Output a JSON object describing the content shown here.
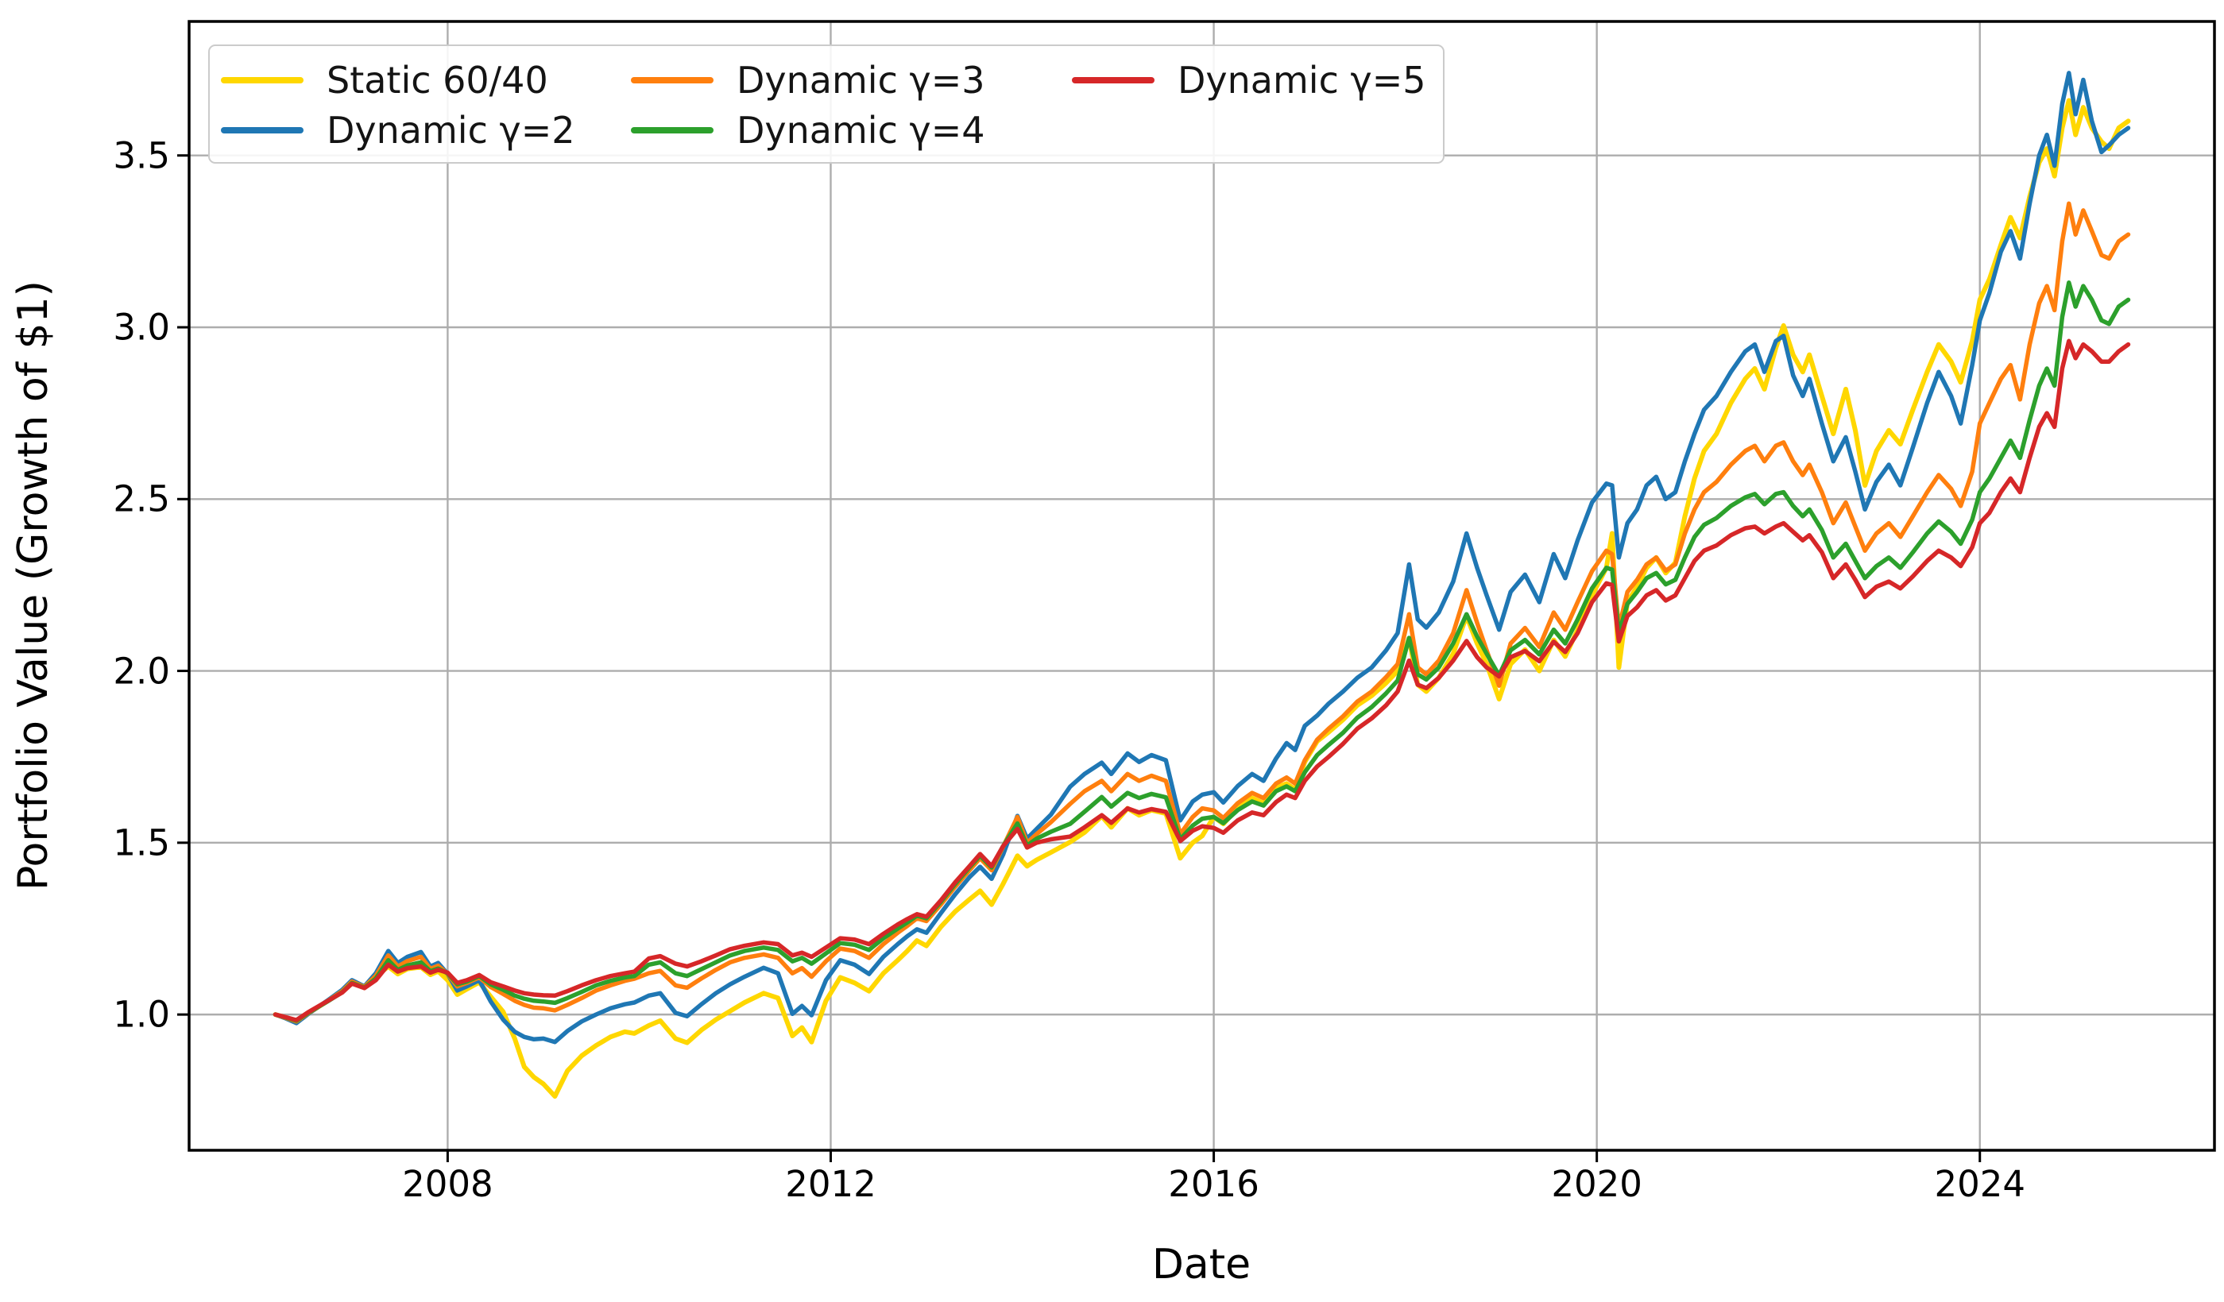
{
  "figure": {
    "background": "#ffffff"
  },
  "axes": {
    "xlabel": "Date",
    "ylabel": "Portfolio Value (Growth of $1)",
    "x_tick_labels": [
      "2008",
      "2012",
      "2016",
      "2020",
      "2024"
    ],
    "y_tick_labels": [
      "1.0",
      "1.5",
      "2.0",
      "2.5",
      "3.0",
      "3.5"
    ],
    "grid_color": "#adadad",
    "spine_color": "#000000",
    "tick_color": "#000000"
  },
  "legend": {
    "border_color": "#cbcbcb",
    "background": "#ffffff",
    "columns": [
      {
        "x": 14,
        "entry_indexes": [
          0,
          1
        ]
      },
      {
        "x": 530,
        "entry_indexes": [
          2,
          3
        ]
      },
      {
        "x": 1085,
        "entry_indexes": [
          4
        ]
      }
    ]
  },
  "chart_data": {
    "type": "line",
    "title": "",
    "xlabel": "Date",
    "ylabel": "Portfolio Value (Growth of $1)",
    "legend_position": "upper-left",
    "grid": true,
    "xlim": [
      2005.3,
      2026.45
    ],
    "ylim": [
      0.605,
      3.89
    ],
    "x_ticks": [
      2008,
      2012,
      2016,
      2020,
      2024
    ],
    "y_ticks": [
      1.0,
      1.5,
      2.0,
      2.5,
      3.0,
      3.5
    ],
    "x": [
      2006.2,
      2006.3,
      2006.42,
      2006.55,
      2006.75,
      2006.9,
      2007.0,
      2007.13,
      2007.25,
      2007.38,
      2007.48,
      2007.58,
      2007.72,
      2007.82,
      2007.9,
      2008.0,
      2008.1,
      2008.2,
      2008.33,
      2008.45,
      2008.58,
      2008.7,
      2008.8,
      2008.9,
      2009.0,
      2009.12,
      2009.25,
      2009.4,
      2009.55,
      2009.7,
      2009.85,
      2009.95,
      2010.1,
      2010.22,
      2010.38,
      2010.5,
      2010.65,
      2010.8,
      2010.95,
      2011.1,
      2011.3,
      2011.45,
      2011.6,
      2011.7,
      2011.8,
      2011.95,
      2012.1,
      2012.25,
      2012.4,
      2012.55,
      2012.7,
      2012.8,
      2012.9,
      2013.0,
      2013.15,
      2013.3,
      2013.45,
      2013.56,
      2013.68,
      2013.8,
      2013.95,
      2014.05,
      2014.15,
      2014.3,
      2014.5,
      2014.65,
      2014.83,
      2014.93,
      2015.1,
      2015.22,
      2015.35,
      2015.5,
      2015.65,
      2015.78,
      2015.88,
      2016.0,
      2016.1,
      2016.25,
      2016.4,
      2016.52,
      2016.65,
      2016.76,
      2016.85,
      2016.95,
      2017.08,
      2017.2,
      2017.35,
      2017.5,
      2017.65,
      2017.8,
      2017.92,
      2018.04,
      2018.13,
      2018.22,
      2018.35,
      2018.5,
      2018.64,
      2018.75,
      2018.85,
      2018.98,
      2019.1,
      2019.25,
      2019.4,
      2019.55,
      2019.67,
      2019.8,
      2019.95,
      2020.1,
      2020.16,
      2020.23,
      2020.32,
      2020.42,
      2020.52,
      2020.62,
      2020.72,
      2020.82,
      2020.92,
      2021.02,
      2021.12,
      2021.25,
      2021.4,
      2021.55,
      2021.65,
      2021.75,
      2021.87,
      2021.95,
      2022.05,
      2022.15,
      2022.22,
      2022.35,
      2022.47,
      2022.6,
      2022.7,
      2022.8,
      2022.92,
      2023.05,
      2023.17,
      2023.3,
      2023.45,
      2023.57,
      2023.7,
      2023.8,
      2023.92,
      2024.0,
      2024.1,
      2024.22,
      2024.32,
      2024.42,
      2024.52,
      2024.62,
      2024.7,
      2024.78,
      2024.86,
      2024.93,
      2025.0,
      2025.08,
      2025.17,
      2025.27,
      2025.35,
      2025.45,
      2025.55
    ],
    "series": [
      {
        "name": "Static 60/40",
        "color": "#FFD700",
        "linewidth": 6,
        "values": [
          1.0,
          0.992,
          0.978,
          1.005,
          1.04,
          1.068,
          1.095,
          1.078,
          1.11,
          1.14,
          1.118,
          1.133,
          1.138,
          1.116,
          1.126,
          1.1,
          1.058,
          1.074,
          1.094,
          1.052,
          1.008,
          0.93,
          0.848,
          0.818,
          0.798,
          0.762,
          0.836,
          0.88,
          0.91,
          0.935,
          0.95,
          0.945,
          0.968,
          0.982,
          0.93,
          0.918,
          0.955,
          0.985,
          1.01,
          1.035,
          1.062,
          1.048,
          0.938,
          0.962,
          0.92,
          1.04,
          1.108,
          1.092,
          1.068,
          1.12,
          1.158,
          1.185,
          1.215,
          1.2,
          1.255,
          1.3,
          1.335,
          1.36,
          1.32,
          1.38,
          1.462,
          1.432,
          1.45,
          1.472,
          1.502,
          1.53,
          1.577,
          1.545,
          1.6,
          1.58,
          1.595,
          1.585,
          1.455,
          1.5,
          1.52,
          1.575,
          1.555,
          1.6,
          1.63,
          1.615,
          1.66,
          1.672,
          1.655,
          1.735,
          1.795,
          1.822,
          1.858,
          1.9,
          1.928,
          1.965,
          2.0,
          2.095,
          1.96,
          1.94,
          1.98,
          2.05,
          2.16,
          2.08,
          2.02,
          1.918,
          2.02,
          2.062,
          2.0,
          2.09,
          2.042,
          2.12,
          2.22,
          2.3,
          2.4,
          2.01,
          2.2,
          2.245,
          2.3,
          2.33,
          2.285,
          2.315,
          2.45,
          2.56,
          2.64,
          2.69,
          2.78,
          2.85,
          2.88,
          2.82,
          2.94,
          3.005,
          2.92,
          2.87,
          2.92,
          2.8,
          2.69,
          2.82,
          2.7,
          2.54,
          2.64,
          2.7,
          2.66,
          2.76,
          2.87,
          2.95,
          2.9,
          2.84,
          2.96,
          3.08,
          3.14,
          3.24,
          3.32,
          3.26,
          3.38,
          3.48,
          3.52,
          3.44,
          3.58,
          3.66,
          3.56,
          3.64,
          3.58,
          3.54,
          3.52,
          3.58,
          3.6
        ]
      },
      {
        "name": "Dynamic γ=2",
        "color": "#1f77b4",
        "linewidth": 5.5,
        "values": [
          1.0,
          0.99,
          0.975,
          1.003,
          1.042,
          1.072,
          1.1,
          1.082,
          1.12,
          1.185,
          1.15,
          1.168,
          1.182,
          1.14,
          1.15,
          1.118,
          1.07,
          1.082,
          1.1,
          1.038,
          0.985,
          0.95,
          0.935,
          0.928,
          0.93,
          0.92,
          0.952,
          0.98,
          1.0,
          1.018,
          1.03,
          1.035,
          1.055,
          1.062,
          1.005,
          0.995,
          1.03,
          1.062,
          1.088,
          1.11,
          1.136,
          1.12,
          1.002,
          1.025,
          0.998,
          1.1,
          1.158,
          1.145,
          1.118,
          1.168,
          1.205,
          1.228,
          1.248,
          1.238,
          1.295,
          1.35,
          1.4,
          1.43,
          1.395,
          1.465,
          1.578,
          1.512,
          1.54,
          1.582,
          1.663,
          1.7,
          1.733,
          1.7,
          1.76,
          1.735,
          1.755,
          1.74,
          1.565,
          1.62,
          1.64,
          1.647,
          1.617,
          1.665,
          1.7,
          1.68,
          1.745,
          1.79,
          1.77,
          1.84,
          1.87,
          1.905,
          1.94,
          1.98,
          2.01,
          2.06,
          2.11,
          2.31,
          2.15,
          2.126,
          2.17,
          2.26,
          2.4,
          2.3,
          2.22,
          2.12,
          2.23,
          2.28,
          2.2,
          2.34,
          2.27,
          2.38,
          2.49,
          2.545,
          2.54,
          2.33,
          2.43,
          2.47,
          2.54,
          2.565,
          2.5,
          2.52,
          2.61,
          2.69,
          2.76,
          2.8,
          2.87,
          2.93,
          2.95,
          2.87,
          2.96,
          2.975,
          2.86,
          2.8,
          2.85,
          2.72,
          2.61,
          2.68,
          2.58,
          2.47,
          2.55,
          2.6,
          2.54,
          2.65,
          2.78,
          2.87,
          2.8,
          2.72,
          2.89,
          3.02,
          3.1,
          3.22,
          3.28,
          3.2,
          3.36,
          3.5,
          3.56,
          3.47,
          3.65,
          3.74,
          3.62,
          3.72,
          3.6,
          3.51,
          3.53,
          3.56,
          3.58
        ]
      },
      {
        "name": "Dynamic γ=3",
        "color": "#ff7f0e",
        "linewidth": 5.5,
        "values": [
          1.0,
          0.991,
          0.98,
          1.005,
          1.04,
          1.068,
          1.096,
          1.08,
          1.113,
          1.172,
          1.14,
          1.156,
          1.168,
          1.133,
          1.142,
          1.118,
          1.082,
          1.092,
          1.108,
          1.08,
          1.06,
          1.04,
          1.028,
          1.02,
          1.018,
          1.012,
          1.028,
          1.048,
          1.07,
          1.085,
          1.098,
          1.104,
          1.12,
          1.127,
          1.085,
          1.078,
          1.105,
          1.13,
          1.152,
          1.165,
          1.175,
          1.165,
          1.12,
          1.135,
          1.11,
          1.155,
          1.192,
          1.185,
          1.165,
          1.205,
          1.238,
          1.258,
          1.28,
          1.272,
          1.32,
          1.372,
          1.42,
          1.455,
          1.42,
          1.488,
          1.575,
          1.5,
          1.525,
          1.56,
          1.613,
          1.65,
          1.68,
          1.65,
          1.7,
          1.68,
          1.695,
          1.68,
          1.525,
          1.575,
          1.6,
          1.594,
          1.572,
          1.615,
          1.645,
          1.63,
          1.672,
          1.69,
          1.672,
          1.74,
          1.8,
          1.832,
          1.868,
          1.911,
          1.94,
          1.982,
          2.02,
          2.165,
          2.01,
          1.99,
          2.03,
          2.11,
          2.235,
          2.14,
          2.06,
          1.957,
          2.08,
          2.125,
          2.07,
          2.17,
          2.12,
          2.2,
          2.29,
          2.35,
          2.34,
          2.126,
          2.23,
          2.265,
          2.31,
          2.33,
          2.292,
          2.31,
          2.4,
          2.47,
          2.52,
          2.55,
          2.6,
          2.64,
          2.655,
          2.61,
          2.655,
          2.665,
          2.61,
          2.57,
          2.6,
          2.52,
          2.43,
          2.49,
          2.42,
          2.35,
          2.4,
          2.43,
          2.39,
          2.45,
          2.52,
          2.57,
          2.53,
          2.48,
          2.58,
          2.72,
          2.78,
          2.85,
          2.89,
          2.79,
          2.95,
          3.07,
          3.12,
          3.05,
          3.25,
          3.36,
          3.27,
          3.34,
          3.28,
          3.21,
          3.2,
          3.25,
          3.27
        ]
      },
      {
        "name": "Dynamic γ=4",
        "color": "#2ca02c",
        "linewidth": 5.5,
        "values": [
          1.0,
          0.992,
          0.982,
          1.006,
          1.039,
          1.065,
          1.092,
          1.078,
          1.105,
          1.158,
          1.13,
          1.143,
          1.152,
          1.126,
          1.134,
          1.12,
          1.088,
          1.096,
          1.112,
          1.088,
          1.072,
          1.055,
          1.046,
          1.04,
          1.038,
          1.034,
          1.048,
          1.066,
          1.085,
          1.098,
          1.108,
          1.112,
          1.145,
          1.152,
          1.12,
          1.112,
          1.132,
          1.152,
          1.172,
          1.185,
          1.195,
          1.188,
          1.155,
          1.165,
          1.148,
          1.178,
          1.208,
          1.203,
          1.188,
          1.222,
          1.25,
          1.268,
          1.288,
          1.28,
          1.328,
          1.38,
          1.428,
          1.462,
          1.428,
          1.49,
          1.556,
          1.492,
          1.512,
          1.532,
          1.555,
          1.59,
          1.633,
          1.605,
          1.645,
          1.63,
          1.642,
          1.632,
          1.51,
          1.55,
          1.57,
          1.575,
          1.557,
          1.595,
          1.62,
          1.608,
          1.65,
          1.664,
          1.65,
          1.705,
          1.755,
          1.785,
          1.82,
          1.864,
          1.895,
          1.935,
          1.972,
          2.096,
          1.99,
          1.975,
          2.01,
          2.08,
          2.165,
          2.1,
          2.05,
          1.987,
          2.06,
          2.09,
          2.048,
          2.12,
          2.08,
          2.15,
          2.24,
          2.3,
          2.295,
          2.11,
          2.195,
          2.23,
          2.27,
          2.285,
          2.252,
          2.265,
          2.33,
          2.39,
          2.425,
          2.445,
          2.48,
          2.505,
          2.515,
          2.485,
          2.515,
          2.52,
          2.48,
          2.45,
          2.47,
          2.41,
          2.33,
          2.37,
          2.32,
          2.27,
          2.305,
          2.33,
          2.3,
          2.345,
          2.4,
          2.435,
          2.405,
          2.37,
          2.44,
          2.52,
          2.56,
          2.62,
          2.67,
          2.62,
          2.73,
          2.83,
          2.88,
          2.83,
          3.03,
          3.13,
          3.06,
          3.12,
          3.08,
          3.02,
          3.01,
          3.06,
          3.08
        ]
      },
      {
        "name": "Dynamic γ=5",
        "color": "#d62728",
        "linewidth": 5.5,
        "values": [
          1.0,
          0.993,
          0.984,
          1.008,
          1.04,
          1.064,
          1.09,
          1.077,
          1.1,
          1.145,
          1.125,
          1.135,
          1.14,
          1.122,
          1.13,
          1.122,
          1.092,
          1.1,
          1.115,
          1.094,
          1.082,
          1.07,
          1.062,
          1.058,
          1.056,
          1.055,
          1.068,
          1.085,
          1.1,
          1.112,
          1.12,
          1.125,
          1.163,
          1.17,
          1.148,
          1.14,
          1.155,
          1.172,
          1.19,
          1.2,
          1.21,
          1.205,
          1.172,
          1.18,
          1.168,
          1.195,
          1.222,
          1.218,
          1.205,
          1.235,
          1.262,
          1.278,
          1.292,
          1.285,
          1.332,
          1.385,
          1.432,
          1.467,
          1.432,
          1.49,
          1.54,
          1.486,
          1.5,
          1.51,
          1.518,
          1.545,
          1.58,
          1.558,
          1.6,
          1.588,
          1.598,
          1.59,
          1.505,
          1.535,
          1.548,
          1.543,
          1.529,
          1.565,
          1.588,
          1.58,
          1.618,
          1.64,
          1.63,
          1.68,
          1.722,
          1.75,
          1.788,
          1.832,
          1.862,
          1.9,
          1.94,
          2.03,
          1.96,
          1.95,
          1.98,
          2.03,
          2.087,
          2.04,
          2.01,
          1.984,
          2.04,
          2.058,
          2.028,
          2.085,
          2.055,
          2.11,
          2.2,
          2.255,
          2.25,
          2.086,
          2.16,
          2.185,
          2.22,
          2.235,
          2.205,
          2.22,
          2.27,
          2.32,
          2.35,
          2.365,
          2.395,
          2.415,
          2.42,
          2.4,
          2.42,
          2.43,
          2.405,
          2.38,
          2.395,
          2.345,
          2.27,
          2.31,
          2.265,
          2.215,
          2.245,
          2.26,
          2.24,
          2.275,
          2.32,
          2.35,
          2.33,
          2.305,
          2.36,
          2.43,
          2.46,
          2.52,
          2.56,
          2.52,
          2.62,
          2.71,
          2.75,
          2.71,
          2.88,
          2.96,
          2.91,
          2.95,
          2.93,
          2.9,
          2.9,
          2.93,
          2.95
        ]
      }
    ]
  }
}
